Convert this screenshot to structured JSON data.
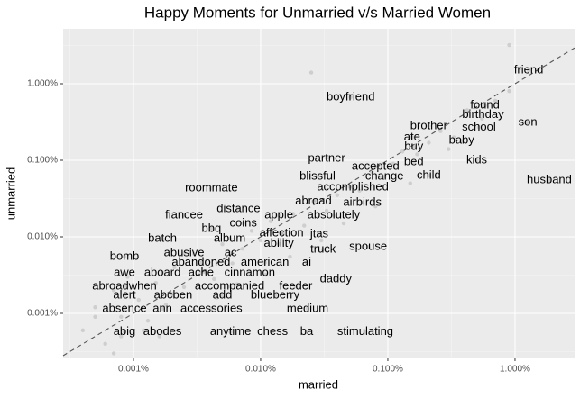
{
  "chart_data": {
    "type": "scatter",
    "title": "Happy Moments for Unmarried v/s Married Women",
    "x_label": "married",
    "y_label": "unmarried",
    "log_x": true,
    "log_y": true,
    "grid": true,
    "minor_grid": true,
    "panel_color": "#ebebeb",
    "point_color": "#595959",
    "point_alpha": 0.2,
    "reference_line": "y=x",
    "xlim": [
      0.00028,
      2.94
    ],
    "ylim": [
      0.000258,
      5.22
    ],
    "xticks": [
      {
        "value": 0.001,
        "label": "0.001%"
      },
      {
        "value": 0.01,
        "label": "0.010%"
      },
      {
        "value": 0.1,
        "label": "0.100%"
      },
      {
        "value": 1,
        "label": "1.000%"
      }
    ],
    "yticks": [
      {
        "value": 0.001,
        "label": "0.001%"
      },
      {
        "value": 0.01,
        "label": "0.010%"
      },
      {
        "value": 0.1,
        "label": "0.100%"
      },
      {
        "value": 1,
        "label": "1.000%"
      }
    ],
    "labels": [
      "friend",
      "boyfriend",
      "found",
      "birthday",
      "son",
      "brother",
      "school",
      "ate",
      "baby",
      "buy",
      "partner",
      "kids",
      "bed",
      "accepted",
      "husband",
      "child",
      "blissful",
      "change",
      "accomplished",
      "roommate",
      "abroad",
      "airbirds",
      "distance",
      "fiancee",
      "apple",
      "absolutely",
      "coins",
      "bbq",
      "affection",
      "jtas",
      "batch",
      "album",
      "ability",
      "spouse",
      "truck",
      "abusive",
      "ac",
      "bomb",
      "abandoned",
      "american",
      "ai",
      "awe",
      "aboard",
      "ache",
      "cinnamon",
      "daddy",
      "abroadwhen",
      "accompanied",
      "feeder",
      "alert",
      "abcben",
      "add",
      "blueberry",
      "absence",
      "ann",
      "accessories",
      "medium",
      "abig",
      "abodes",
      "anytime",
      "chess",
      "ba",
      "stimulating"
    ],
    "x": [
      1.28,
      0.051,
      0.58,
      0.56,
      1.26,
      0.21,
      0.52,
      0.155,
      0.38,
      0.16,
      0.033,
      0.5,
      0.16,
      0.08,
      1.86,
      0.21,
      0.028,
      0.094,
      0.053,
      0.0041,
      0.026,
      0.063,
      0.0067,
      0.0025,
      0.0139,
      0.0375,
      0.0073,
      0.0041,
      0.0146,
      0.0289,
      0.00169,
      0.0057,
      0.0139,
      0.07,
      0.031,
      0.0025,
      0.0058,
      0.00085,
      0.0034,
      0.0108,
      0.023,
      0.00085,
      0.00169,
      0.0034,
      0.0082,
      0.039,
      0.00085,
      0.0057,
      0.0189,
      0.00085,
      0.00205,
      0.005,
      0.013,
      0.00085,
      0.00169,
      0.0041,
      0.0234,
      0.00085,
      0.00169,
      0.0058,
      0.0124,
      0.023,
      0.0665
    ],
    "y": [
      1.5,
      0.667,
      0.52,
      0.39,
      0.31,
      0.28,
      0.27,
      0.2,
      0.18,
      0.15,
      0.106,
      0.1,
      0.095,
      0.083,
      0.055,
      0.063,
      0.061,
      0.061,
      0.044,
      0.043,
      0.029,
      0.028,
      0.023,
      0.019,
      0.019,
      0.019,
      0.015,
      0.0128,
      0.0111,
      0.0108,
      0.0095,
      0.0095,
      0.0081,
      0.0074,
      0.0068,
      0.0061,
      0.0061,
      0.0055,
      0.0046,
      0.0046,
      0.0046,
      0.0034,
      0.0034,
      0.0034,
      0.0034,
      0.0028,
      0.00226,
      0.00226,
      0.00226,
      0.00172,
      0.00172,
      0.00172,
      0.00172,
      0.00115,
      0.00115,
      0.00115,
      0.00115,
      0.00057,
      0.00057,
      0.00057,
      0.00057,
      0.00057,
      0.00057
    ],
    "background_x": [
      0.0004,
      0.0005,
      0.0006,
      0.0007,
      0.0008,
      0.0009,
      0.0011,
      0.0013,
      0.0015,
      0.0018,
      0.0021,
      0.0025,
      0.003,
      0.0036,
      0.0043,
      0.005,
      0.006,
      0.0072,
      0.0085,
      0.01,
      0.012,
      0.015,
      0.018,
      0.022,
      0.027,
      0.033,
      0.04,
      0.05,
      0.06,
      0.075,
      0.09,
      0.11,
      0.13,
      0.17,
      0.21,
      0.26,
      0.33,
      0.42,
      0.55,
      0.7,
      0.9,
      1.1,
      0.0005,
      0.0008,
      0.0012,
      0.002,
      0.003,
      0.0045,
      0.0065,
      0.011,
      0.017,
      0.03,
      0.045,
      0.08,
      0.15,
      0.3,
      0.9,
      0.025,
      0.0007,
      0.0016
    ],
    "background_y": [
      0.0006,
      0.0012,
      0.0004,
      0.002,
      0.0009,
      0.003,
      0.0015,
      0.0008,
      0.0025,
      0.0013,
      0.004,
      0.0022,
      0.006,
      0.0035,
      0.0028,
      0.008,
      0.0045,
      0.007,
      0.012,
      0.009,
      0.016,
      0.011,
      0.02,
      0.014,
      0.03,
      0.022,
      0.035,
      0.045,
      0.04,
      0.07,
      0.06,
      0.09,
      0.13,
      0.12,
      0.17,
      0.24,
      0.2,
      0.45,
      0.35,
      0.6,
      0.8,
      1.6,
      0.0009,
      0.0005,
      0.0006,
      0.0018,
      0.0011,
      0.0016,
      0.0024,
      0.0032,
      0.0055,
      0.009,
      0.015,
      0.025,
      0.05,
      0.14,
      3.2,
      1.4,
      0.0003,
      0.0005
    ]
  }
}
